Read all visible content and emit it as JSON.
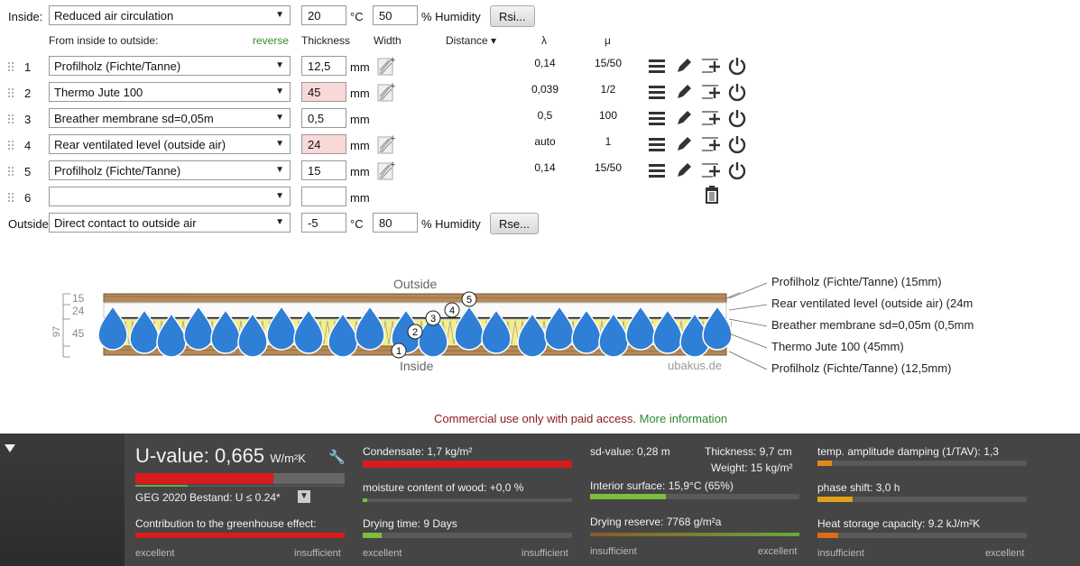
{
  "inside": {
    "label": "Inside:",
    "condition": "Reduced air circulation",
    "temp": "20",
    "temp_unit": "°C",
    "humidity": "50",
    "humidity_unit": "% Humidity",
    "rsi_button": "Rsi..."
  },
  "outside": {
    "label": "Outside",
    "condition": "Direct contact to outside air",
    "temp": "-5",
    "temp_unit": "°C",
    "humidity": "80",
    "humidity_unit": "% Humidity",
    "rse_button": "Rse..."
  },
  "header": {
    "from_inside": "From inside to outside:",
    "reverse": "reverse",
    "thickness": "Thickness",
    "width": "Width",
    "distance": "Distance ▾",
    "lambda": "λ",
    "mu": "μ"
  },
  "layers": [
    {
      "n": "1",
      "material": "Profilholz (Fichte/Tanne)",
      "thickness": "12,5",
      "unit": "mm",
      "lambda": "0,14",
      "mu": "15/50",
      "warn": false
    },
    {
      "n": "2",
      "material": "Thermo Jute 100",
      "thickness": "45",
      "unit": "mm",
      "lambda": "0,039",
      "mu": "1/2",
      "warn": true
    },
    {
      "n": "3",
      "material": "Breather membrane sd=0,05m",
      "thickness": "0,5",
      "unit": "mm",
      "lambda": "0,5",
      "mu": "100",
      "warn": false
    },
    {
      "n": "4",
      "material": "Rear ventilated level (outside air)",
      "thickness": "24",
      "unit": "mm",
      "lambda": "auto",
      "mu": "1",
      "warn": true
    },
    {
      "n": "5",
      "material": "Profilholz (Fichte/Tanne)",
      "thickness": "15",
      "unit": "mm",
      "lambda": "0,14",
      "mu": "15/50",
      "warn": false
    },
    {
      "n": "6",
      "material": "",
      "thickness": "",
      "unit": "mm",
      "lambda": "",
      "mu": "",
      "warn": false
    }
  ],
  "diagram": {
    "outside": "Outside",
    "inside": "Inside",
    "watermark": "ubakus.de",
    "dim_total": "97",
    "dim_15": "15",
    "dim_24": "24",
    "dim_45": "45",
    "markers": [
      "1",
      "2",
      "3",
      "4",
      "5"
    ],
    "legend": [
      "Profilholz (Fichte/Tanne) (15mm)",
      "Rear ventilated level (outside air) (24m",
      "Breather membrane sd=0,05m (0,5mm",
      "Thermo Jute 100 (45mm)",
      "Profilholz (Fichte/Tanne) (12,5mm)"
    ]
  },
  "notice": {
    "text": "Commercial use only with paid access.",
    "link": "More information"
  },
  "results": {
    "u_label": "U-value:",
    "u_value": "0,665",
    "u_unit": "W/m²K",
    "u_fill": 0.6,
    "geg": "GEG 2020 Bestand: U ≤ 0.24*",
    "greenhouse": "Contribution to the greenhouse effect:",
    "condensate": "Condensate: 1,7 kg/m²",
    "moisture": "moisture content of wood: +0,0 %",
    "drying_time": "Drying time: 9 Days",
    "sd": "sd-value: 0,28 m",
    "thickness": "Thickness: 9,7 cm",
    "weight": "Weight: 15 kg/m²",
    "interior": "Interior surface: 15,9°C (65%)",
    "reserve": "Drying reserve: 7768 g/m²a",
    "amplitude": "temp. amplitude damping (1/TAV): 1,3",
    "phase": "phase shift: 3,0 h",
    "heat": "Heat storage capacity: 9.2 kJ/m²K",
    "excellent": "excellent",
    "insufficient": "insufficient"
  },
  "colors": {
    "red": "#d61c1c",
    "green": "#7bbf3a",
    "orange": "#e08a1a",
    "link": "#2a8a2a",
    "notice": "#8a1a1a"
  }
}
